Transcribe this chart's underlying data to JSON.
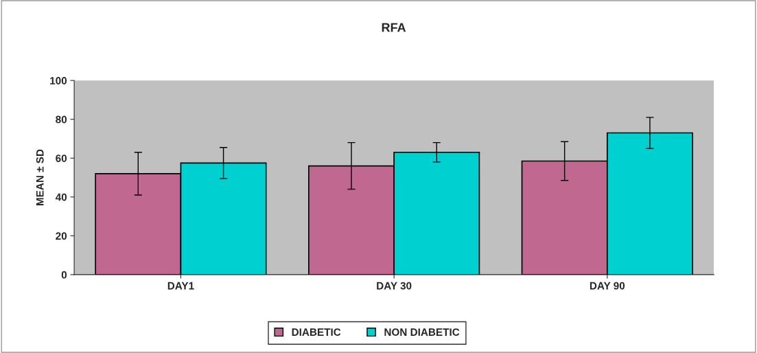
{
  "chart_data": {
    "type": "bar",
    "title": "RFA",
    "ylabel": "MEAN ± SD",
    "categories": [
      "DAY1",
      "DAY 30",
      "DAY 90"
    ],
    "series": [
      {
        "name": "DIABETIC",
        "color": "#c06890",
        "values": [
          52,
          56,
          58.5
        ],
        "errors": [
          11,
          12,
          10
        ]
      },
      {
        "name": "NON DIABETIC",
        "color": "#00d0d0",
        "values": [
          57.5,
          63,
          73
        ],
        "errors": [
          8,
          5,
          8
        ]
      }
    ],
    "ylim": [
      0,
      100
    ],
    "yticks": [
      0,
      20,
      40,
      60,
      80,
      100
    ],
    "grid": false,
    "legend": "bottom"
  }
}
